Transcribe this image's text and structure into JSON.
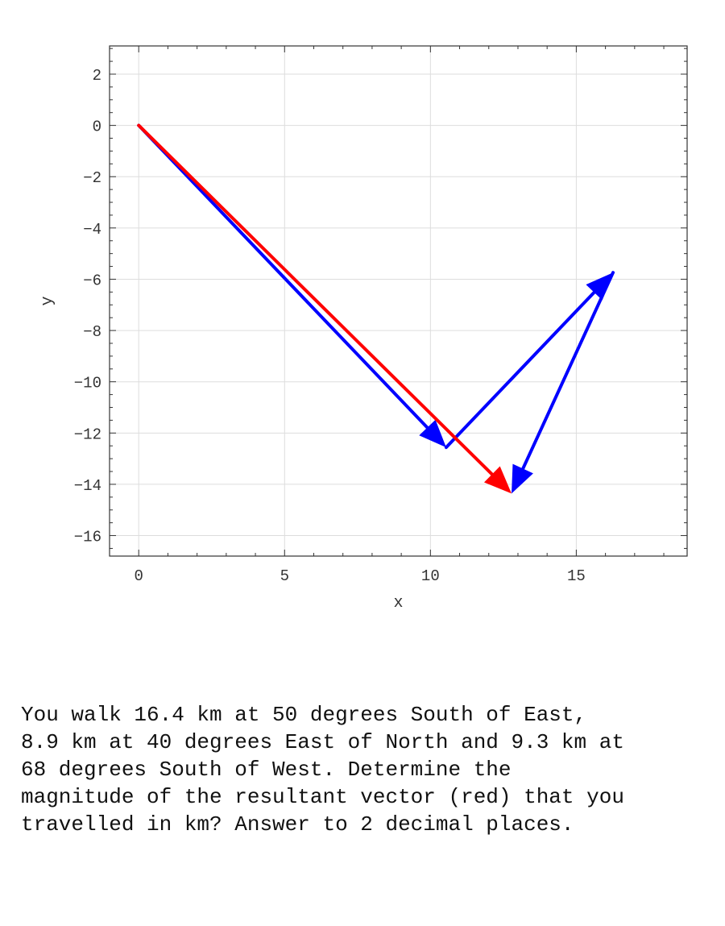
{
  "chart_data": {
    "type": "vector-diagram",
    "xlabel": "x",
    "ylabel": "y",
    "xlim": [
      -1,
      18.8
    ],
    "ylim": [
      -16.8,
      3.1
    ],
    "xticks": [
      0,
      5,
      10,
      15
    ],
    "yticks": [
      2,
      0,
      -2,
      -4,
      -6,
      -8,
      -10,
      -12,
      -14,
      -16
    ],
    "grid": true,
    "vectors": [
      {
        "color": "#0000ff",
        "from": [
          0,
          0
        ],
        "to": [
          10.54,
          -12.56
        ]
      },
      {
        "color": "#0000ff",
        "from": [
          10.54,
          -12.56
        ],
        "to": [
          16.26,
          -5.74
        ]
      },
      {
        "color": "#0000ff",
        "from": [
          16.26,
          -5.74
        ],
        "to": [
          12.78,
          -14.36
        ]
      },
      {
        "color": "#ff0000",
        "from": [
          0,
          0
        ],
        "to": [
          12.78,
          -14.36
        ]
      }
    ]
  },
  "question": "You walk 16.4 km at 50 degrees South of East,\n8.9 km at 40 degrees East of North and 9.3 km at\n68 degrees South of West.  Determine the\nmagnitude of the resultant vector (red) that you\ntravelled in km? Answer to 2 decimal places."
}
